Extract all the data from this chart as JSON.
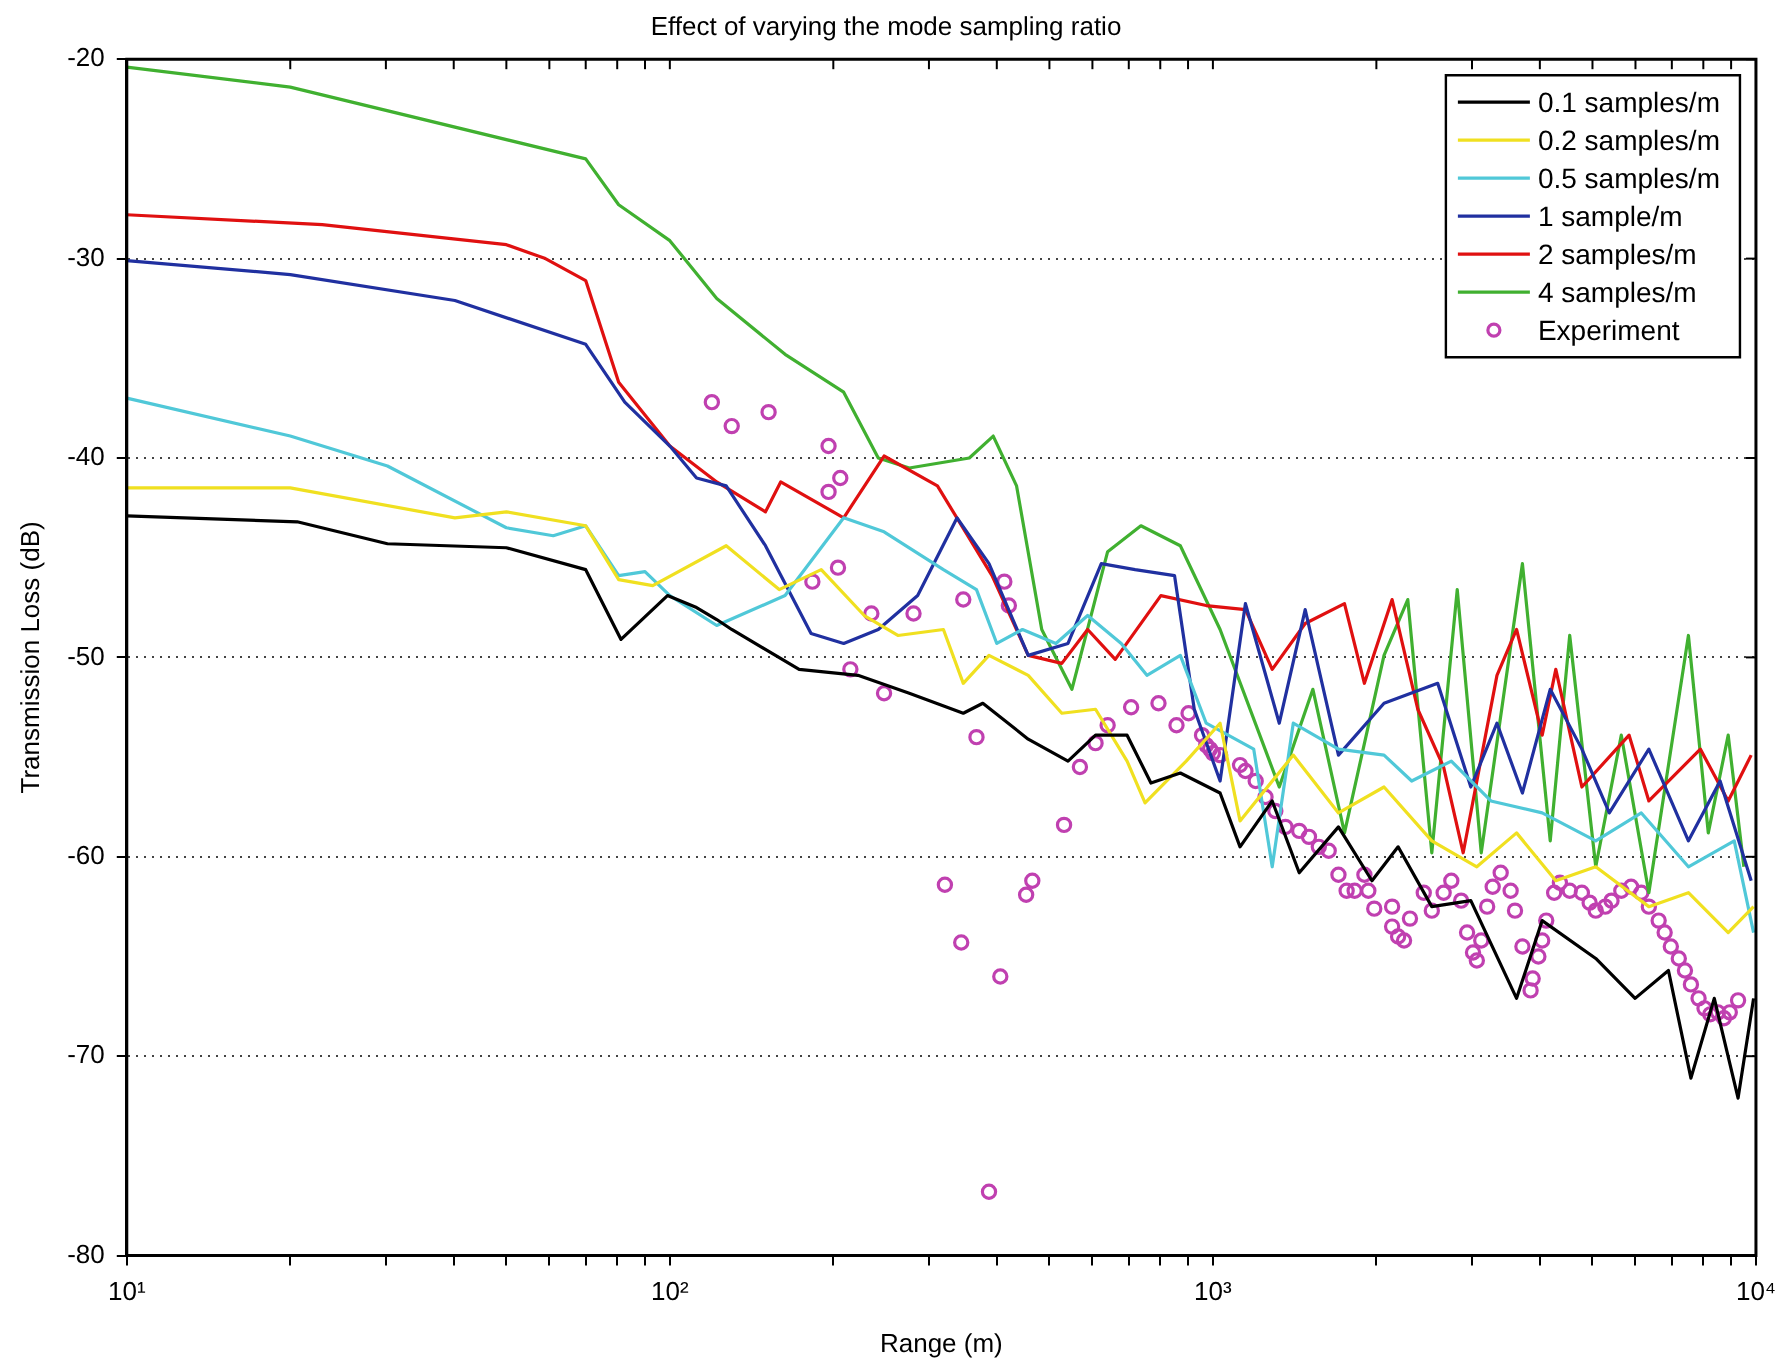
{
  "chart_data": {
    "type": "line",
    "title": "Effect of varying the mode sampling ratio",
    "xlabel": "Range (m)",
    "ylabel": "Transmission Loss (dB)",
    "log": "x",
    "xlim": [
      10,
      10000
    ],
    "ylim": [
      -80,
      -20
    ],
    "xticks": [
      {
        "value": 10,
        "label": "10¹"
      },
      {
        "value": 20,
        "label": null
      },
      {
        "value": 30,
        "label": null
      },
      {
        "value": 40,
        "label": null
      },
      {
        "value": 50,
        "label": null
      },
      {
        "value": 60,
        "label": null
      },
      {
        "value": 70,
        "label": null
      },
      {
        "value": 80,
        "label": null
      },
      {
        "value": 90,
        "label": null
      },
      {
        "value": 100,
        "label": "10²"
      },
      {
        "value": 200,
        "label": null
      },
      {
        "value": 300,
        "label": null
      },
      {
        "value": 400,
        "label": null
      },
      {
        "value": 500,
        "label": null
      },
      {
        "value": 600,
        "label": null
      },
      {
        "value": 700,
        "label": null
      },
      {
        "value": 800,
        "label": null
      },
      {
        "value": 900,
        "label": null
      },
      {
        "value": 1000,
        "label": "10³"
      },
      {
        "value": 2000,
        "label": null
      },
      {
        "value": 3000,
        "label": null
      },
      {
        "value": 4000,
        "label": null
      },
      {
        "value": 5000,
        "label": null
      },
      {
        "value": 6000,
        "label": null
      },
      {
        "value": 7000,
        "label": null
      },
      {
        "value": 8000,
        "label": null
      },
      {
        "value": 9000,
        "label": null
      },
      {
        "value": 10000,
        "label": "10⁴"
      }
    ],
    "yticks": [
      -80,
      -70,
      -60,
      -50,
      -40,
      -30,
      -20
    ],
    "grid": "y",
    "legend": "top right",
    "marker": "none",
    "line_style": "solid",
    "series": [
      {
        "name": "0.1 samples/m",
        "color": "#000000",
        "x": [
          10,
          20.6,
          30.2,
          50,
          70,
          81.3,
          99,
          112,
          122,
          130,
          173,
          222,
          276,
          347,
          377,
          457,
          541,
          608,
          695,
          769,
          871,
          1031,
          1122,
          1286,
          1442,
          1703,
          1963,
          2193,
          2530,
          2985,
          3624,
          4040,
          5070,
          5990,
          6900,
          7590,
          8380,
          9270,
          9900
        ],
        "values": [
          -42.9,
          -43.2,
          -44.3,
          -44.5,
          -45.6,
          -49.1,
          -46.9,
          -47.5,
          -48.1,
          -48.6,
          -50.6,
          -50.9,
          -51.8,
          -52.8,
          -52.3,
          -54.1,
          -55.2,
          -53.9,
          -53.9,
          -56.3,
          -55.8,
          -56.8,
          -59.5,
          -57.2,
          -60.8,
          -58.5,
          -61.2,
          -59.5,
          -62.5,
          -62.2,
          -67.1,
          -63.2,
          -65.1,
          -67.1,
          -65.7,
          -71.1,
          -67.1,
          -72.1,
          -67.1
        ]
      },
      {
        "name": "0.2 samples/m",
        "color": "#f0e020",
        "x": [
          10,
          20,
          40.2,
          50,
          70,
          80.5,
          93,
          127,
          159,
          190,
          228,
          263,
          319,
          347,
          387,
          457,
          527,
          608,
          695,
          750,
          893,
          1031,
          1122,
          1406,
          1703,
          2066,
          2530,
          3062,
          3624,
          4280,
          5070,
          6350,
          7510,
          8890,
          9900
        ],
        "values": [
          -41.5,
          -41.5,
          -43.0,
          -42.7,
          -43.4,
          -46.1,
          -46.4,
          -44.4,
          -46.6,
          -45.6,
          -47.9,
          -48.9,
          -48.6,
          -51.3,
          -49.9,
          -50.9,
          -52.8,
          -52.6,
          -55.2,
          -57.3,
          -55.2,
          -53.3,
          -58.2,
          -54.9,
          -57.8,
          -56.5,
          -59.2,
          -60.5,
          -58.8,
          -61.2,
          -60.5,
          -62.5,
          -61.8,
          -63.8,
          -62.5
        ]
      },
      {
        "name": "0.5 samples/m",
        "color": "#50c8d8",
        "x": [
          10,
          20,
          30.2,
          50,
          61,
          70,
          80.5,
          90,
          100,
          122,
          163,
          209,
          248,
          319,
          367,
          400,
          446,
          514,
          588,
          678,
          756,
          871,
          972,
          1189,
          1286,
          1406,
          1703,
          2066,
          2323,
          2748,
          3250,
          4040,
          5070,
          6150,
          7510,
          9120,
          9900
        ],
        "values": [
          -37.0,
          -38.9,
          -40.4,
          -43.5,
          -43.9,
          -43.4,
          -45.9,
          -45.7,
          -46.9,
          -48.4,
          -46.9,
          -43.0,
          -43.7,
          -45.6,
          -46.6,
          -49.3,
          -48.6,
          -49.3,
          -47.9,
          -49.3,
          -50.9,
          -49.9,
          -53.3,
          -54.6,
          -60.5,
          -53.3,
          -54.6,
          -54.9,
          -56.2,
          -55.2,
          -57.2,
          -57.8,
          -59.2,
          -57.8,
          -60.5,
          -59.2,
          -63.8
        ]
      },
      {
        "name": "1 sample/m",
        "color": "#2030a0",
        "x": [
          10,
          20,
          40.2,
          70,
          82.6,
          100,
          112,
          127,
          150,
          182,
          209,
          242,
          286,
          338,
          387,
          457,
          541,
          623,
          719,
          850,
          924,
          1031,
          1148,
          1325,
          1479,
          1703,
          2066,
          2594,
          2985,
          3335,
          3715,
          4180,
          4780,
          5370,
          6350,
          7510,
          8590,
          9800
        ],
        "values": [
          -30.1,
          -30.8,
          -32.1,
          -34.3,
          -37.2,
          -39.4,
          -41.0,
          -41.4,
          -44.4,
          -48.8,
          -49.3,
          -48.6,
          -46.9,
          -43.0,
          -45.3,
          -49.9,
          -49.3,
          -45.3,
          -45.6,
          -45.9,
          -52.6,
          -56.2,
          -47.3,
          -53.3,
          -47.6,
          -54.9,
          -52.3,
          -51.3,
          -56.5,
          -53.3,
          -56.8,
          -51.6,
          -54.6,
          -57.8,
          -54.6,
          -59.2,
          -56.2,
          -61.2
        ]
      },
      {
        "name": "2 samples/m",
        "color": "#e01010",
        "x": [
          10,
          22.9,
          50,
          59,
          70,
          80.5,
          100,
          122,
          150,
          160,
          209,
          248,
          311,
          392,
          457,
          527,
          588,
          661,
          802,
          972,
          1148,
          1286,
          1479,
          1747,
          1901,
          2138,
          2384,
          2660,
          2890,
          3335,
          3624,
          4040,
          4280,
          4780,
          5840,
          6350,
          7900,
          8890,
          9800
        ],
        "values": [
          -27.8,
          -28.3,
          -29.3,
          -30.0,
          -31.1,
          -36.2,
          -39.4,
          -41.2,
          -42.7,
          -41.2,
          -43.0,
          -39.9,
          -41.4,
          -45.9,
          -49.9,
          -50.3,
          -48.6,
          -50.1,
          -46.9,
          -47.4,
          -47.6,
          -50.6,
          -48.3,
          -47.3,
          -51.3,
          -47.1,
          -52.6,
          -55.5,
          -59.8,
          -50.9,
          -48.6,
          -53.9,
          -50.6,
          -56.5,
          -53.9,
          -57.2,
          -54.6,
          -57.2,
          -54.9
        ]
      },
      {
        "name": "4 samples/m",
        "color": "#40b030",
        "x": [
          10,
          20,
          70,
          80.5,
          100,
          122,
          163,
          209,
          242,
          276,
          356,
          394,
          435,
          484,
          550,
          640,
          737,
          871,
          1031,
          1325,
          1528,
          1747,
          2066,
          2285,
          2530,
          2818,
          3120,
          3715,
          4180,
          4540,
          5070,
          5650,
          6350,
          7510,
          8170,
          8890,
          9500
        ],
        "values": [
          -20.4,
          -21.4,
          -25.0,
          -27.3,
          -29.1,
          -32.0,
          -34.8,
          -36.7,
          -40.0,
          -40.5,
          -40.0,
          -38.9,
          -41.4,
          -48.6,
          -51.6,
          -44.7,
          -43.4,
          -44.4,
          -48.6,
          -56.5,
          -51.6,
          -58.8,
          -49.9,
          -47.1,
          -59.8,
          -46.6,
          -59.8,
          -45.3,
          -59.2,
          -48.9,
          -60.5,
          -53.9,
          -61.8,
          -48.9,
          -58.8,
          -53.9,
          -60.5
        ]
      },
      {
        "name": "Experiment",
        "type": "scatter",
        "marker": "circle",
        "color": "#c040b0",
        "x": [
          119.5,
          130,
          152,
          196,
          206,
          196,
          204,
          183,
          235,
          281,
          215,
          248,
          347,
          413,
          421,
          367,
          569,
          532,
          640,
          608,
          707,
          794,
          857,
          902,
          955,
          988,
          972,
          1000,
          1031,
          1122,
          1148,
          1199,
          1250,
          1303,
          1360,
          1442,
          1503,
          1567,
          1634,
          1703,
          1763,
          1824,
          1901,
          1933,
          1982,
          2138,
          2138,
          2193,
          2249,
          2306,
          2445,
          2530,
          2660,
          2748,
          2865,
          2938,
          3013,
          3062,
          3120,
          3199,
          3275,
          3388,
          3534,
          3600,
          3715,
          3846,
          3880,
          3975,
          4040,
          4110,
          4250,
          4355,
          4540,
          4780,
          4940,
          5070,
          5280,
          5420,
          5650,
          5890,
          6150,
          6350,
          6620,
          6790,
          6970,
          7210,
          7400,
          7590,
          7840,
          8040,
          8240,
          8510,
          8730,
          8950,
          9270,
          321,
          344,
          465,
          453,
          406,
          387
        ],
        "values": [
          -37.2,
          -38.4,
          -37.7,
          -39.4,
          -41.0,
          -41.7,
          -45.5,
          -46.2,
          -47.8,
          -47.8,
          -50.6,
          -51.8,
          -47.1,
          -46.2,
          -47.4,
          -54.0,
          -55.5,
          -58.4,
          -53.4,
          -54.3,
          -52.5,
          -52.3,
          -53.4,
          -52.8,
          -53.9,
          -54.6,
          -54.4,
          -54.8,
          -54.9,
          -55.4,
          -55.7,
          -56.2,
          -57.0,
          -57.7,
          -58.5,
          -58.7,
          -59.0,
          -59.5,
          -59.7,
          -60.9,
          -61.7,
          -61.7,
          -60.9,
          -61.7,
          -62.6,
          -62.5,
          -63.5,
          -64.0,
          -64.2,
          -63.1,
          -61.8,
          -62.7,
          -61.8,
          -61.2,
          -62.2,
          -63.8,
          -64.8,
          -65.2,
          -64.2,
          -62.5,
          -61.5,
          -60.8,
          -61.7,
          -62.7,
          -64.5,
          -66.7,
          -66.1,
          -65.0,
          -64.2,
          -63.2,
          -61.8,
          -61.3,
          -61.7,
          -61.8,
          -62.3,
          -62.7,
          -62.5,
          -62.2,
          -61.7,
          -61.5,
          -61.8,
          -62.5,
          -63.2,
          -63.8,
          -64.5,
          -65.1,
          -65.7,
          -66.4,
          -67.1,
          -67.6,
          -67.9,
          -67.8,
          -68.1,
          -67.8,
          -67.2,
          -61.4,
          -64.3,
          -61.2,
          -61.9,
          -66.0,
          -76.8
        ]
      }
    ]
  }
}
